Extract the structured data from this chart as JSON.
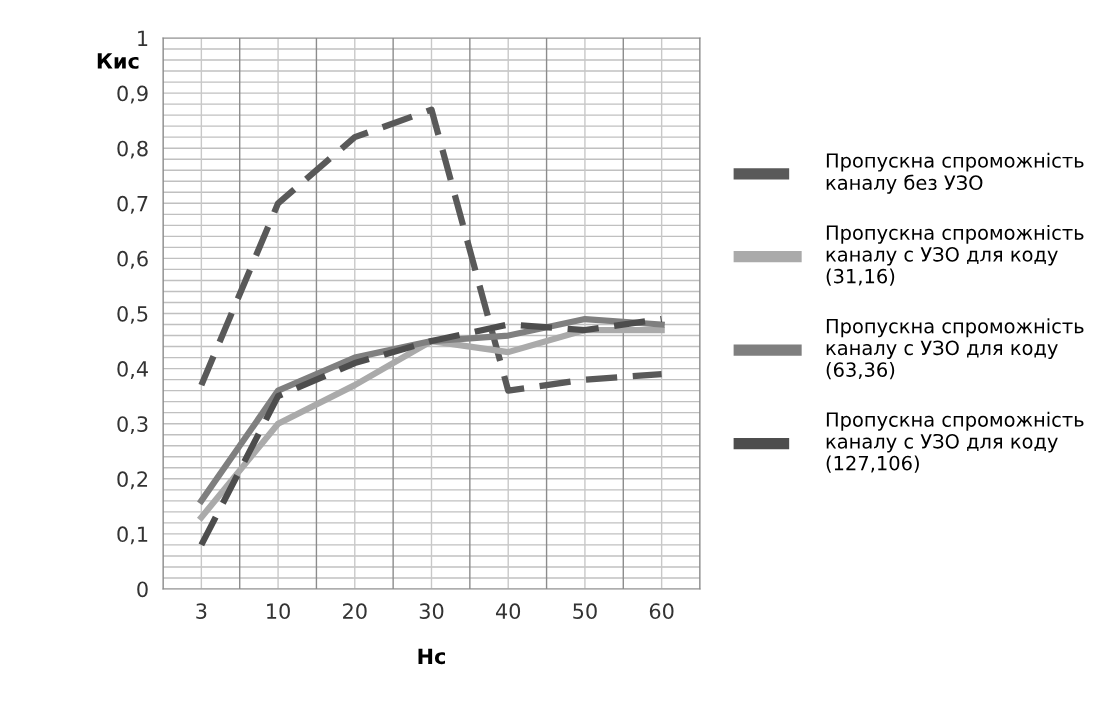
{
  "chart_data": {
    "type": "line",
    "xlabel": "Нс",
    "ylabel": "Кис",
    "categories": [
      "3",
      "10",
      "20",
      "30",
      "40",
      "50",
      "60"
    ],
    "series": [
      {
        "name": "Пропускна спроможність каналу без УЗО",
        "color": "#595959",
        "line_style": "dashed",
        "values": [
          0.37,
          0.7,
          0.82,
          0.87,
          0.36,
          0.38,
          0.39
        ]
      },
      {
        "name": "Пропускна спроможність каналу с УЗО для коду (31,16)",
        "color": "#aaaaaa",
        "line_style": "solid",
        "values": [
          0.13,
          0.3,
          0.37,
          0.45,
          0.43,
          0.47,
          0.47
        ]
      },
      {
        "name": "Пропускна спроможність каналу с УЗО для коду (63,36)",
        "color": "#7f7f7f",
        "line_style": "solid",
        "values": [
          0.16,
          0.36,
          0.42,
          0.45,
          0.46,
          0.49,
          0.48
        ]
      },
      {
        "name": "Пропускна спроможність каналу с УЗО для коду (127,106)",
        "color": "#4d4d4d",
        "line_style": "dashed",
        "values": [
          0.08,
          0.35,
          0.41,
          0.45,
          0.48,
          0.47,
          0.49
        ]
      }
    ],
    "ylim": [
      0,
      1
    ],
    "yticks": [
      0,
      {
        "value": 0.1,
        "label": "0,1"
      },
      {
        "value": 0.2,
        "label": "0,2"
      },
      {
        "value": 0.3,
        "label": "0,3"
      },
      {
        "value": 0.4,
        "label": "0,4"
      },
      {
        "value": 0.5,
        "label": "0,5"
      },
      {
        "value": 0.6,
        "label": "0,6"
      },
      {
        "value": 0.7,
        "label": "0,7"
      },
      {
        "value": 0.8,
        "label": "0,8"
      },
      {
        "value": 0.9,
        "label": "0,9"
      },
      1
    ],
    "grid": true,
    "legend": "right",
    "marker": "none"
  }
}
